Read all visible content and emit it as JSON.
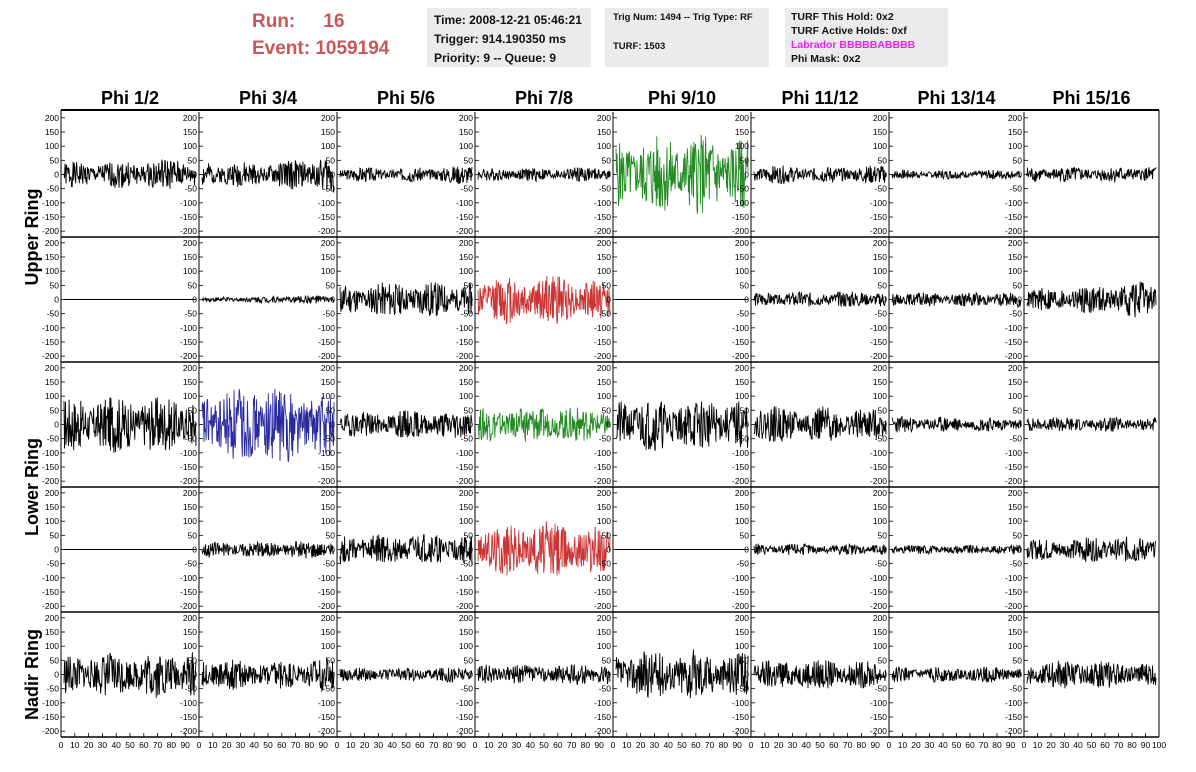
{
  "header": {
    "run_label": "Run:",
    "run_value": "16",
    "event_label": "Event:",
    "event_value": "1059194",
    "time": "Time: 2008-12-21 05:46:21",
    "trigger": "Trigger: 914.190350 ms",
    "priority": "Priority: 9 -- Queue: 9",
    "trig_num": "Trig Num: 1494 -- Trig Type: RF",
    "turf": "TURF: 1503",
    "turf_this_hold": "TURF This Hold: 0x2",
    "turf_active_holds": "TURF Active Holds: 0xf",
    "labrador": "Labrador BBBBBABBBB",
    "phi_mask": "Phi Mask: 0x2"
  },
  "columns": [
    "Phi 1/2",
    "Phi 3/4",
    "Phi 5/6",
    "Phi 7/8",
    "Phi 9/10",
    "Phi 11/12",
    "Phi 13/14",
    "Phi 15/16"
  ],
  "row_labels": [
    {
      "text": "Upper Ring",
      "rows": [
        0,
        1
      ]
    },
    {
      "text": "Lower Ring",
      "rows": [
        2,
        3
      ]
    },
    {
      "text": "Nadir Ring",
      "rows": [
        4
      ]
    }
  ],
  "colors": {
    "black": "#000000",
    "green": "#228b22",
    "red": "#cc3333",
    "blue": "#2a2aa0",
    "run_text": "#cc5555",
    "labrador_text": "#ee22ee",
    "info_bg": "#ebebeb"
  },
  "chart_data": {
    "type": "line",
    "xlim": [
      0,
      100
    ],
    "ylim": [
      -210,
      210
    ],
    "yticks": [
      -200,
      -150,
      -100,
      -50,
      0,
      50,
      100,
      150,
      200
    ],
    "xticks": [
      0,
      10,
      20,
      30,
      40,
      50,
      60,
      70,
      80,
      90,
      100
    ],
    "panels": [
      {
        "row": 0,
        "col": 0,
        "color": "black",
        "amp": 55,
        "seed": 1,
        "env": [
          0.8,
          0.9,
          1.1
        ]
      },
      {
        "row": 0,
        "col": 1,
        "color": "black",
        "amp": 60,
        "seed": 2,
        "env": [
          0.8,
          0.7,
          1.2
        ]
      },
      {
        "row": 0,
        "col": 2,
        "color": "black",
        "amp": 30,
        "seed": 3,
        "env": [
          0.9,
          0.8,
          1.2
        ]
      },
      {
        "row": 0,
        "col": 3,
        "color": "black",
        "amp": 25,
        "seed": 4,
        "env": [
          0.9,
          1.0,
          1.1
        ]
      },
      {
        "row": 0,
        "col": 4,
        "color": "green",
        "amp": 150,
        "seed": 5,
        "env": [
          0.8,
          1.0,
          0.9
        ]
      },
      {
        "row": 0,
        "col": 5,
        "color": "black",
        "amp": 35,
        "seed": 6,
        "env": [
          1.0,
          0.8,
          1.0
        ]
      },
      {
        "row": 0,
        "col": 6,
        "color": "black",
        "amp": 18,
        "seed": 7,
        "env": [
          0.9,
          0.9,
          1.0
        ]
      },
      {
        "row": 0,
        "col": 7,
        "color": "black",
        "amp": 30,
        "seed": 8,
        "env": [
          1.0,
          0.9,
          1.0
        ]
      },
      {
        "row": 1,
        "col": 0,
        "color": "black",
        "amp": 0,
        "seed": 9,
        "env": [
          1,
          1,
          1
        ]
      },
      {
        "row": 1,
        "col": 1,
        "color": "black",
        "amp": 12,
        "seed": 10,
        "env": [
          0.6,
          1.0,
          1.4
        ]
      },
      {
        "row": 1,
        "col": 2,
        "color": "black",
        "amp": 60,
        "seed": 11,
        "env": [
          0.9,
          1.1,
          1.0
        ]
      },
      {
        "row": 1,
        "col": 3,
        "color": "red",
        "amp": 85,
        "seed": 12,
        "env": [
          1.0,
          1.1,
          0.8
        ]
      },
      {
        "row": 1,
        "col": 4,
        "color": "black",
        "amp": 0,
        "seed": 13,
        "env": [
          1,
          1,
          1
        ]
      },
      {
        "row": 1,
        "col": 5,
        "color": "black",
        "amp": 28,
        "seed": 14,
        "env": [
          0.9,
          1.0,
          1.1
        ]
      },
      {
        "row": 1,
        "col": 6,
        "color": "black",
        "amp": 25,
        "seed": 15,
        "env": [
          1.0,
          1.0,
          1.1
        ]
      },
      {
        "row": 1,
        "col": 7,
        "color": "black",
        "amp": 50,
        "seed": 16,
        "env": [
          0.8,
          1.0,
          1.4
        ]
      },
      {
        "row": 2,
        "col": 0,
        "color": "black",
        "amp": 100,
        "seed": 17,
        "env": [
          1.0,
          1.0,
          1.0
        ]
      },
      {
        "row": 2,
        "col": 1,
        "color": "blue",
        "amp": 135,
        "seed": 18,
        "env": [
          0.9,
          1.1,
          0.8
        ]
      },
      {
        "row": 2,
        "col": 2,
        "color": "black",
        "amp": 50,
        "seed": 19,
        "env": [
          0.9,
          1.0,
          1.0
        ]
      },
      {
        "row": 2,
        "col": 3,
        "color": "green",
        "amp": 65,
        "seed": 20,
        "env": [
          0.9,
          1.0,
          0.9
        ]
      },
      {
        "row": 2,
        "col": 4,
        "color": "black",
        "amp": 100,
        "seed": 21,
        "env": [
          1.0,
          0.9,
          0.9
        ]
      },
      {
        "row": 2,
        "col": 5,
        "color": "black",
        "amp": 65,
        "seed": 22,
        "env": [
          1.0,
          1.0,
          0.8
        ]
      },
      {
        "row": 2,
        "col": 6,
        "color": "black",
        "amp": 30,
        "seed": 23,
        "env": [
          1.0,
          0.9,
          0.8
        ]
      },
      {
        "row": 2,
        "col": 7,
        "color": "black",
        "amp": 28,
        "seed": 24,
        "env": [
          1.0,
          0.9,
          0.9
        ]
      },
      {
        "row": 3,
        "col": 0,
        "color": "black",
        "amp": 0,
        "seed": 25,
        "env": [
          1,
          1,
          1
        ]
      },
      {
        "row": 3,
        "col": 1,
        "color": "black",
        "amp": 30,
        "seed": 26,
        "env": [
          0.9,
          1.0,
          1.1
        ]
      },
      {
        "row": 3,
        "col": 2,
        "color": "black",
        "amp": 55,
        "seed": 27,
        "env": [
          1.0,
          1.0,
          1.0
        ]
      },
      {
        "row": 3,
        "col": 3,
        "color": "red",
        "amp": 100,
        "seed": 28,
        "env": [
          0.8,
          1.1,
          0.8
        ]
      },
      {
        "row": 3,
        "col": 4,
        "color": "black",
        "amp": 0,
        "seed": 29,
        "env": [
          1,
          1,
          1
        ]
      },
      {
        "row": 3,
        "col": 5,
        "color": "black",
        "amp": 22,
        "seed": 30,
        "env": [
          1.0,
          0.9,
          1.0
        ]
      },
      {
        "row": 3,
        "col": 6,
        "color": "black",
        "amp": 18,
        "seed": 31,
        "env": [
          1.0,
          0.9,
          1.0
        ]
      },
      {
        "row": 3,
        "col": 7,
        "color": "black",
        "amp": 45,
        "seed": 32,
        "env": [
          0.8,
          1.0,
          1.1
        ]
      },
      {
        "row": 4,
        "col": 0,
        "color": "black",
        "amp": 80,
        "seed": 33,
        "env": [
          0.9,
          1.0,
          1.1
        ]
      },
      {
        "row": 4,
        "col": 1,
        "color": "black",
        "amp": 60,
        "seed": 34,
        "env": [
          1.0,
          0.8,
          1.1
        ]
      },
      {
        "row": 4,
        "col": 2,
        "color": "black",
        "amp": 30,
        "seed": 35,
        "env": [
          0.9,
          0.8,
          1.0
        ]
      },
      {
        "row": 4,
        "col": 3,
        "color": "black",
        "amp": 40,
        "seed": 36,
        "env": [
          0.9,
          0.9,
          1.0
        ]
      },
      {
        "row": 4,
        "col": 4,
        "color": "black",
        "amp": 85,
        "seed": 37,
        "env": [
          0.9,
          1.1,
          0.9
        ]
      },
      {
        "row": 4,
        "col": 5,
        "color": "black",
        "amp": 55,
        "seed": 38,
        "env": [
          1.0,
          1.0,
          0.8
        ]
      },
      {
        "row": 4,
        "col": 6,
        "color": "black",
        "amp": 30,
        "seed": 39,
        "env": [
          0.9,
          0.9,
          1.0
        ]
      },
      {
        "row": 4,
        "col": 7,
        "color": "black",
        "amp": 50,
        "seed": 40,
        "env": [
          1.0,
          1.0,
          0.8
        ]
      }
    ]
  }
}
